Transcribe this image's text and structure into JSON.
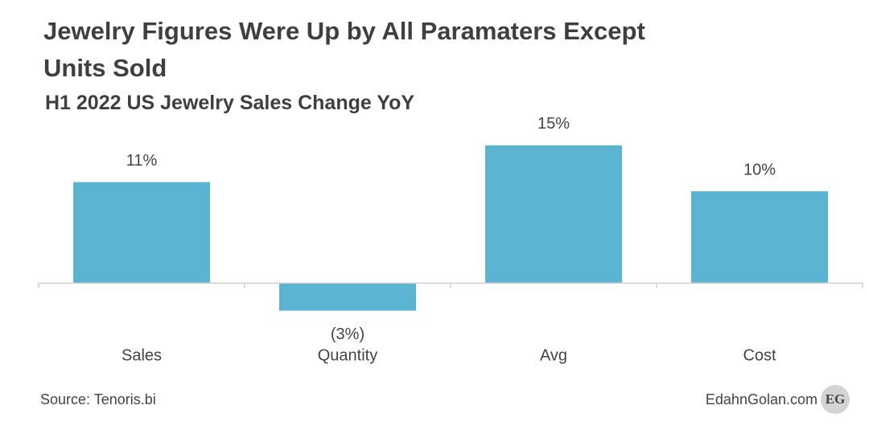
{
  "chart_data": {
    "type": "bar",
    "title": "Jewelry Figures Were Up by All Paramaters Except Units Sold",
    "subtitle": "H1 2022 US Jewelry Sales Change YoY",
    "categories": [
      "Sales",
      "Quantity",
      "Avg",
      "Cost"
    ],
    "values": [
      11,
      -3,
      15,
      10
    ],
    "value_labels": [
      "11%",
      "(3%)",
      "15%",
      "10%"
    ],
    "color": "#5ab4d2",
    "negative_label_color": "#c0392b",
    "ylim": [
      -4,
      17
    ],
    "source": "Source: Tenoris.bi",
    "credit": "EdahnGolan.com",
    "badge": "EG"
  }
}
